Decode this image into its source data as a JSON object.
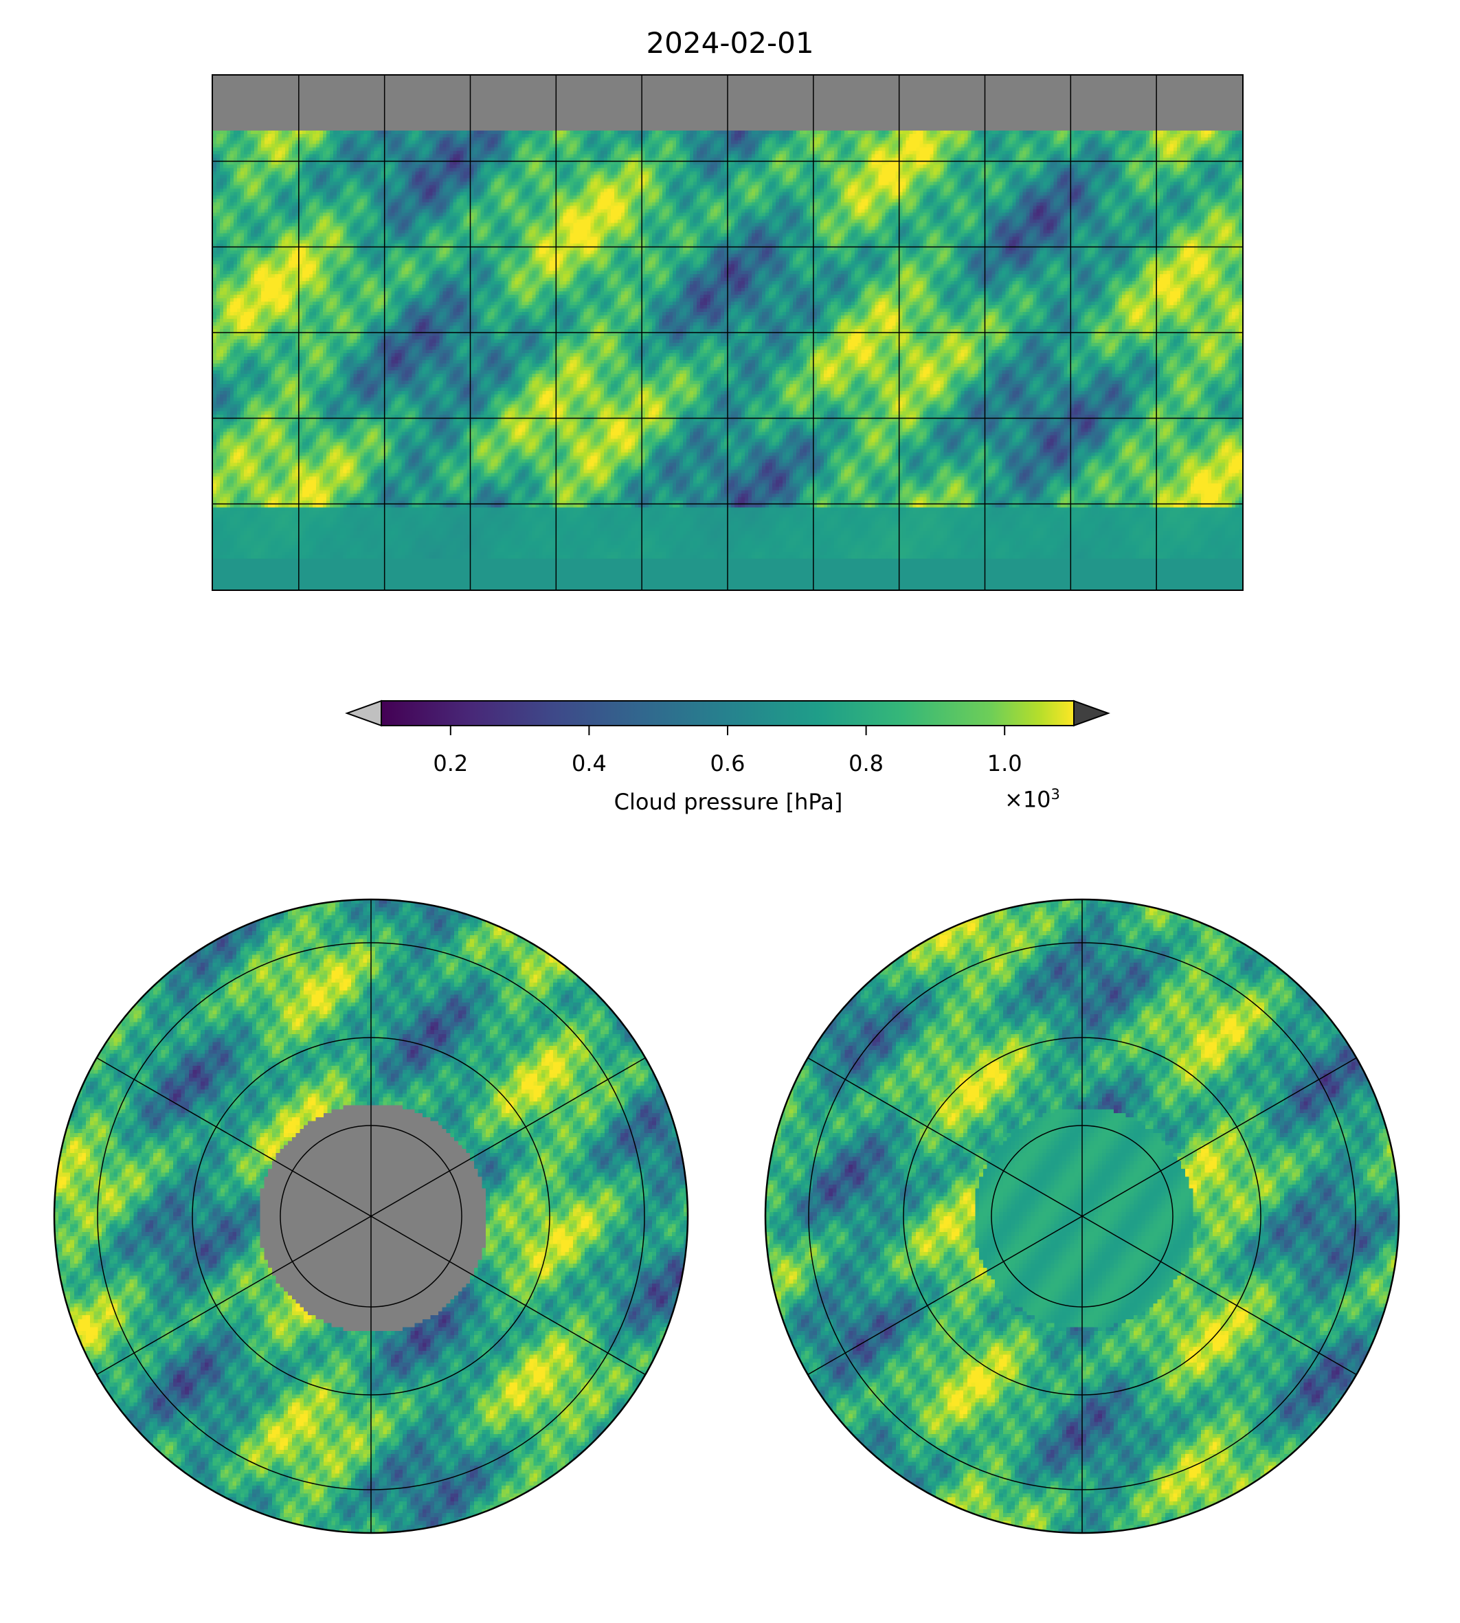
{
  "title": "2024-02-01",
  "colorbar": {
    "label": "Cloud pressure [hPa]",
    "offset_text": "×10",
    "offset_exp": "3",
    "ticks": [
      "0.2",
      "0.4",
      "0.6",
      "0.8",
      "1.0"
    ],
    "tick_values": [
      0.2,
      0.4,
      0.6,
      0.8,
      1.0
    ],
    "range": [
      0.1,
      1.1
    ],
    "extend": "both",
    "under_color": "#c0c0c0",
    "over_color": "#404040",
    "cmap": "viridis"
  },
  "chart_data": {
    "type": "heatmap",
    "title": "2024-02-01",
    "variable": "Cloud pressure [hPa]",
    "value_range": [
      100,
      1100
    ],
    "missing_color": "#808080",
    "panels": [
      {
        "name": "global",
        "projection": "plate-carree",
        "lon_range": [
          -180,
          180
        ],
        "lat_range": [
          -90,
          90
        ],
        "gridlines_lon_step": 30,
        "gridlines_lat_step": 30,
        "missing_region": "north of ~70N"
      },
      {
        "name": "north-polar",
        "projection": "north-polar-stereo",
        "missing_region": "north of ~70N"
      },
      {
        "name": "south-polar",
        "projection": "south-polar-stereo"
      }
    ]
  }
}
